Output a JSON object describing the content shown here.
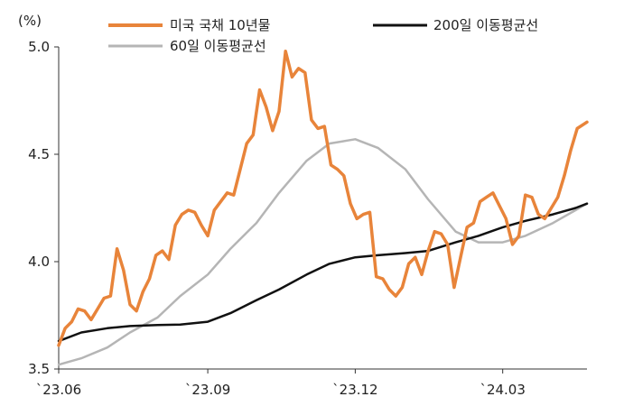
{
  "chart_data": {
    "type": "line",
    "unit_label": "(%)",
    "ylim": [
      3.5,
      5.0
    ],
    "yticks": [
      "5.0",
      "4.5",
      "4.0",
      "3.5"
    ],
    "xticks": [
      "`23.06",
      "`23.09",
      "`23.12",
      "`24.03"
    ],
    "xtick_dates": [
      "2023-06-01",
      "2023-09-01",
      "2023-12-01",
      "2024-03-01"
    ],
    "x_range": [
      "2023-06-01",
      "2024-04-22"
    ],
    "grid": false,
    "legend_position": "top",
    "colors": {
      "us10y": "#e8843a",
      "ma60": "#b5b5b5",
      "ma200": "#111111"
    },
    "series": [
      {
        "name": "미국 국채 10년물",
        "key": "us10y",
        "x": [
          "2023-06-01",
          "2023-06-05",
          "2023-06-09",
          "2023-06-13",
          "2023-06-17",
          "2023-06-21",
          "2023-06-25",
          "2023-06-29",
          "2023-07-03",
          "2023-07-07",
          "2023-07-11",
          "2023-07-15",
          "2023-07-19",
          "2023-07-23",
          "2023-07-27",
          "2023-07-31",
          "2023-08-04",
          "2023-08-08",
          "2023-08-12",
          "2023-08-16",
          "2023-08-20",
          "2023-08-24",
          "2023-08-28",
          "2023-09-01",
          "2023-09-05",
          "2023-09-09",
          "2023-09-13",
          "2023-09-17",
          "2023-09-21",
          "2023-09-25",
          "2023-09-29",
          "2023-10-03",
          "2023-10-07",
          "2023-10-11",
          "2023-10-15",
          "2023-10-19",
          "2023-10-23",
          "2023-10-27",
          "2023-10-31",
          "2023-11-04",
          "2023-11-08",
          "2023-11-12",
          "2023-11-16",
          "2023-11-20",
          "2023-11-24",
          "2023-11-28",
          "2023-12-02",
          "2023-12-06",
          "2023-12-10",
          "2023-12-14",
          "2023-12-18",
          "2023-12-22",
          "2023-12-26",
          "2023-12-30",
          "2024-01-03",
          "2024-01-07",
          "2024-01-11",
          "2024-01-15",
          "2024-01-19",
          "2024-01-23",
          "2024-01-27",
          "2024-01-31",
          "2024-02-04",
          "2024-02-08",
          "2024-02-12",
          "2024-02-16",
          "2024-02-20",
          "2024-02-24",
          "2024-02-28",
          "2024-03-03",
          "2024-03-07",
          "2024-03-11",
          "2024-03-15",
          "2024-03-19",
          "2024-03-23",
          "2024-03-27",
          "2024-03-31",
          "2024-04-04",
          "2024-04-08",
          "2024-04-12",
          "2024-04-16",
          "2024-04-20",
          "2024-04-22"
        ],
        "values": [
          3.61,
          3.69,
          3.72,
          3.78,
          3.77,
          3.73,
          3.78,
          3.83,
          3.84,
          4.06,
          3.96,
          3.8,
          3.77,
          3.86,
          3.92,
          4.03,
          4.05,
          4.01,
          4.17,
          4.22,
          4.24,
          4.23,
          4.17,
          4.12,
          4.24,
          4.28,
          4.32,
          4.31,
          4.43,
          4.55,
          4.59,
          4.8,
          4.72,
          4.61,
          4.7,
          4.98,
          4.86,
          4.9,
          4.88,
          4.66,
          4.62,
          4.63,
          4.45,
          4.43,
          4.4,
          4.27,
          4.2,
          4.22,
          4.23,
          3.93,
          3.92,
          3.87,
          3.84,
          3.88,
          3.99,
          4.02,
          3.94,
          4.05,
          4.14,
          4.13,
          4.08,
          3.88,
          4.02,
          4.16,
          4.18,
          4.28,
          4.3,
          4.32,
          4.26,
          4.2,
          4.08,
          4.12,
          4.31,
          4.3,
          4.22,
          4.2,
          4.25,
          4.3,
          4.4,
          4.52,
          4.62,
          4.64,
          4.65
        ]
      },
      {
        "name": "200일 이동평균선",
        "key": "ma200",
        "x": [
          "2023-06-01",
          "2023-06-15",
          "2023-07-01",
          "2023-07-15",
          "2023-08-01",
          "2023-08-15",
          "2023-09-01",
          "2023-09-15",
          "2023-10-01",
          "2023-10-15",
          "2023-11-01",
          "2023-11-15",
          "2023-12-01",
          "2023-12-15",
          "2024-01-01",
          "2024-01-15",
          "2024-02-01",
          "2024-02-15",
          "2024-03-01",
          "2024-03-15",
          "2024-04-01",
          "2024-04-15",
          "2024-04-22"
        ],
        "values": [
          3.63,
          3.67,
          3.69,
          3.7,
          3.705,
          3.707,
          3.72,
          3.76,
          3.82,
          3.87,
          3.94,
          3.99,
          4.02,
          4.03,
          4.04,
          4.05,
          4.09,
          4.12,
          4.16,
          4.19,
          4.22,
          4.25,
          4.27
        ]
      },
      {
        "name": "60일 이동평균선",
        "key": "ma60",
        "x": [
          "2023-06-01",
          "2023-06-15",
          "2023-07-01",
          "2023-07-15",
          "2023-08-01",
          "2023-08-15",
          "2023-09-01",
          "2023-09-15",
          "2023-10-01",
          "2023-10-15",
          "2023-11-01",
          "2023-11-15",
          "2023-12-01",
          "2023-12-15",
          "2024-01-01",
          "2024-01-15",
          "2024-02-01",
          "2024-02-15",
          "2024-03-01",
          "2024-03-15",
          "2024-04-01",
          "2024-04-15",
          "2024-04-22"
        ],
        "values": [
          3.52,
          3.55,
          3.6,
          3.67,
          3.74,
          3.84,
          3.94,
          4.06,
          4.18,
          4.32,
          4.47,
          4.55,
          4.57,
          4.53,
          4.43,
          4.29,
          4.14,
          4.09,
          4.09,
          4.12,
          4.18,
          4.24,
          4.27
        ]
      }
    ]
  }
}
